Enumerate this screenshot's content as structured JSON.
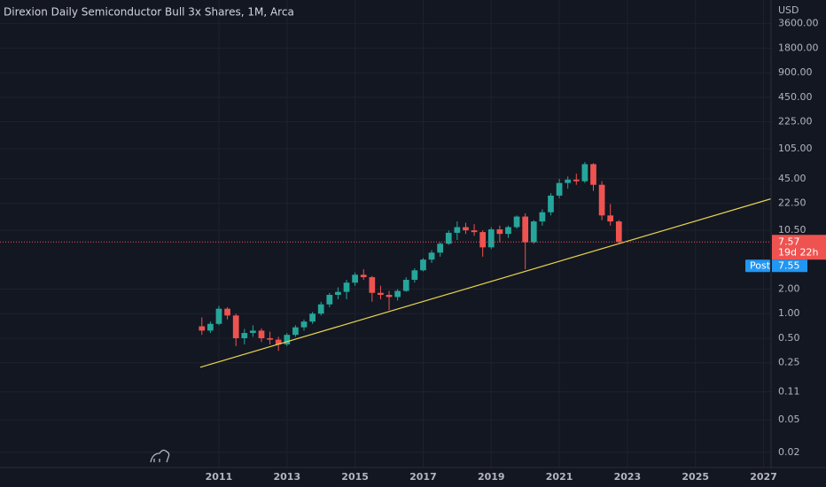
{
  "chart_data": {
    "type": "candlestick",
    "title": "Direxion Daily Semiconductor Bull 3x Shares, 1M, Arca",
    "currency": "USD",
    "log_scale": true,
    "grid": true,
    "xlim": [
      2004.57,
      2027.22
    ],
    "xticks": [
      2011,
      2013,
      2015,
      2017,
      2019,
      2021,
      2023,
      2025,
      2027
    ],
    "ylim": [
      0.013,
      7000
    ],
    "yticks": [
      {
        "value": 3600,
        "label": "3600.00"
      },
      {
        "value": 1800,
        "label": "1800.00"
      },
      {
        "value": 900,
        "label": "900.00"
      },
      {
        "value": 450,
        "label": "450.00"
      },
      {
        "value": 225,
        "label": "225.00"
      },
      {
        "value": 105,
        "label": "105.00"
      },
      {
        "value": 45,
        "label": "45.00"
      },
      {
        "value": 22.5,
        "label": "22.50"
      },
      {
        "value": 10.5,
        "label": "10.50"
      },
      {
        "value": 2,
        "label": "2.00"
      },
      {
        "value": 1,
        "label": "1.00"
      },
      {
        "value": 0.5,
        "label": "0.50"
      },
      {
        "value": 0.25,
        "label": "0.25"
      },
      {
        "value": 0.11,
        "label": "0.11"
      },
      {
        "value": 0.05,
        "label": "0.05"
      },
      {
        "value": 0.02,
        "label": "0.02"
      }
    ],
    "up_color": "#26a69a",
    "down_color": "#ef5350",
    "x": [
      2010.5,
      2010.75,
      2011.0,
      2011.25,
      2011.5,
      2011.75,
      2012.0,
      2012.25,
      2012.5,
      2012.75,
      2013.0,
      2013.25,
      2013.5,
      2013.75,
      2014.0,
      2014.25,
      2014.5,
      2014.75,
      2015.0,
      2015.25,
      2015.5,
      2015.75,
      2016.0,
      2016.25,
      2016.5,
      2016.75,
      2017.0,
      2017.25,
      2017.5,
      2017.75,
      2018.0,
      2018.25,
      2018.5,
      2018.75,
      2019.0,
      2019.25,
      2019.5,
      2019.75,
      2020.0,
      2020.25,
      2020.5,
      2020.75,
      2021.0,
      2021.25,
      2021.5,
      2021.75,
      2022.0,
      2022.25,
      2022.5,
      2022.75
    ],
    "open": [
      0.7,
      0.62,
      0.75,
      1.15,
      0.95,
      0.5,
      0.58,
      0.62,
      0.5,
      0.48,
      0.42,
      0.55,
      0.68,
      0.8,
      1.0,
      1.3,
      1.7,
      1.85,
      2.4,
      3.0,
      2.8,
      1.8,
      1.7,
      1.6,
      1.9,
      2.6,
      3.4,
      4.6,
      5.6,
      7.2,
      9.8,
      11.5,
      10.5,
      10.0,
      6.5,
      10.8,
      9.5,
      11.5,
      15.5,
      7.5,
      13.5,
      17.5,
      28.0,
      40.0,
      44.0,
      42.0,
      68.0,
      38.0,
      16.0,
      13.5
    ],
    "high": [
      0.9,
      0.8,
      1.25,
      1.2,
      1.0,
      0.65,
      0.72,
      0.66,
      0.6,
      0.52,
      0.58,
      0.72,
      0.85,
      1.05,
      1.4,
      1.8,
      2.1,
      2.6,
      3.2,
      3.5,
      2.9,
      2.2,
      1.9,
      2.0,
      2.8,
      3.6,
      4.8,
      6.0,
      7.5,
      10.5,
      13.5,
      13.0,
      12.5,
      10.5,
      11.5,
      12.0,
      12.0,
      16.0,
      17.0,
      14.0,
      19.0,
      30.0,
      45.0,
      48.0,
      52.0,
      72.0,
      70.0,
      42.0,
      22.0,
      14.0
    ],
    "low": [
      0.55,
      0.58,
      0.72,
      0.85,
      0.4,
      0.42,
      0.52,
      0.45,
      0.42,
      0.35,
      0.4,
      0.52,
      0.62,
      0.75,
      0.95,
      1.2,
      1.5,
      1.5,
      2.2,
      2.6,
      1.4,
      1.5,
      1.1,
      1.45,
      1.85,
      2.4,
      3.3,
      4.2,
      5.0,
      7.0,
      8.0,
      9.5,
      9.0,
      5.0,
      6.2,
      7.5,
      8.5,
      11.0,
      3.5,
      7.2,
      12.0,
      16.0,
      26.0,
      34.0,
      38.0,
      40.0,
      32.0,
      14.0,
      12.0,
      7.4
    ],
    "close": [
      0.62,
      0.75,
      1.15,
      0.95,
      0.5,
      0.58,
      0.62,
      0.5,
      0.48,
      0.42,
      0.55,
      0.68,
      0.8,
      1.0,
      1.3,
      1.7,
      1.85,
      2.4,
      3.0,
      2.8,
      1.8,
      1.7,
      1.6,
      1.9,
      2.6,
      3.4,
      4.6,
      5.6,
      7.2,
      9.8,
      11.5,
      10.5,
      10.0,
      6.5,
      10.8,
      9.5,
      11.5,
      15.5,
      7.5,
      13.5,
      17.5,
      28.0,
      40.0,
      44.0,
      42.0,
      68.0,
      38.0,
      16.0,
      13.5,
      7.57
    ],
    "trendline": {
      "x": [
        2010.45,
        2027.22
      ],
      "y": [
        0.22,
        25.6
      ],
      "color": "#e8d44d"
    },
    "last_price": 7.57,
    "countdown": "19d 22h",
    "post_label": "Post",
    "post_price": 7.55
  }
}
